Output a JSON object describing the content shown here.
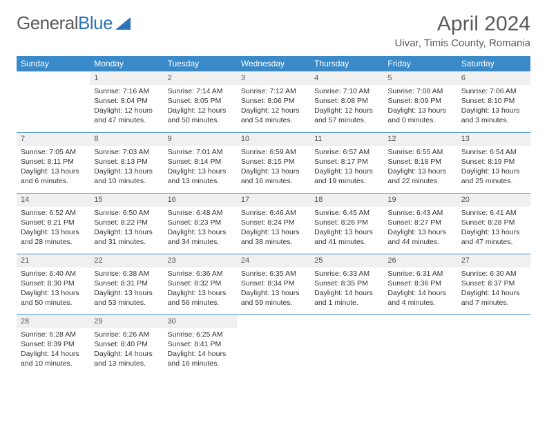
{
  "logo": {
    "text1": "General",
    "text2": "Blue"
  },
  "title": "April 2024",
  "location": "Uivar, Timis County, Romania",
  "day_headers": [
    "Sunday",
    "Monday",
    "Tuesday",
    "Wednesday",
    "Thursday",
    "Friday",
    "Saturday"
  ],
  "colors": {
    "header_bg": "#3a8ac9",
    "header_text": "#ffffff",
    "daynum_bg": "#f0f0f0",
    "row_divider": "#3a8ac9",
    "body_text": "#333333",
    "title_text": "#5a5a5a"
  },
  "weeks": [
    [
      {
        "n": "",
        "sr": "",
        "ss": "",
        "dl": ""
      },
      {
        "n": "1",
        "sr": "Sunrise: 7:16 AM",
        "ss": "Sunset: 8:04 PM",
        "dl": "Daylight: 12 hours and 47 minutes."
      },
      {
        "n": "2",
        "sr": "Sunrise: 7:14 AM",
        "ss": "Sunset: 8:05 PM",
        "dl": "Daylight: 12 hours and 50 minutes."
      },
      {
        "n": "3",
        "sr": "Sunrise: 7:12 AM",
        "ss": "Sunset: 8:06 PM",
        "dl": "Daylight: 12 hours and 54 minutes."
      },
      {
        "n": "4",
        "sr": "Sunrise: 7:10 AM",
        "ss": "Sunset: 8:08 PM",
        "dl": "Daylight: 12 hours and 57 minutes."
      },
      {
        "n": "5",
        "sr": "Sunrise: 7:08 AM",
        "ss": "Sunset: 8:09 PM",
        "dl": "Daylight: 13 hours and 0 minutes."
      },
      {
        "n": "6",
        "sr": "Sunrise: 7:06 AM",
        "ss": "Sunset: 8:10 PM",
        "dl": "Daylight: 13 hours and 3 minutes."
      }
    ],
    [
      {
        "n": "7",
        "sr": "Sunrise: 7:05 AM",
        "ss": "Sunset: 8:11 PM",
        "dl": "Daylight: 13 hours and 6 minutes."
      },
      {
        "n": "8",
        "sr": "Sunrise: 7:03 AM",
        "ss": "Sunset: 8:13 PM",
        "dl": "Daylight: 13 hours and 10 minutes."
      },
      {
        "n": "9",
        "sr": "Sunrise: 7:01 AM",
        "ss": "Sunset: 8:14 PM",
        "dl": "Daylight: 13 hours and 13 minutes."
      },
      {
        "n": "10",
        "sr": "Sunrise: 6:59 AM",
        "ss": "Sunset: 8:15 PM",
        "dl": "Daylight: 13 hours and 16 minutes."
      },
      {
        "n": "11",
        "sr": "Sunrise: 6:57 AM",
        "ss": "Sunset: 8:17 PM",
        "dl": "Daylight: 13 hours and 19 minutes."
      },
      {
        "n": "12",
        "sr": "Sunrise: 6:55 AM",
        "ss": "Sunset: 8:18 PM",
        "dl": "Daylight: 13 hours and 22 minutes."
      },
      {
        "n": "13",
        "sr": "Sunrise: 6:54 AM",
        "ss": "Sunset: 8:19 PM",
        "dl": "Daylight: 13 hours and 25 minutes."
      }
    ],
    [
      {
        "n": "14",
        "sr": "Sunrise: 6:52 AM",
        "ss": "Sunset: 8:21 PM",
        "dl": "Daylight: 13 hours and 28 minutes."
      },
      {
        "n": "15",
        "sr": "Sunrise: 6:50 AM",
        "ss": "Sunset: 8:22 PM",
        "dl": "Daylight: 13 hours and 31 minutes."
      },
      {
        "n": "16",
        "sr": "Sunrise: 6:48 AM",
        "ss": "Sunset: 8:23 PM",
        "dl": "Daylight: 13 hours and 34 minutes."
      },
      {
        "n": "17",
        "sr": "Sunrise: 6:46 AM",
        "ss": "Sunset: 8:24 PM",
        "dl": "Daylight: 13 hours and 38 minutes."
      },
      {
        "n": "18",
        "sr": "Sunrise: 6:45 AM",
        "ss": "Sunset: 8:26 PM",
        "dl": "Daylight: 13 hours and 41 minutes."
      },
      {
        "n": "19",
        "sr": "Sunrise: 6:43 AM",
        "ss": "Sunset: 8:27 PM",
        "dl": "Daylight: 13 hours and 44 minutes."
      },
      {
        "n": "20",
        "sr": "Sunrise: 6:41 AM",
        "ss": "Sunset: 8:28 PM",
        "dl": "Daylight: 13 hours and 47 minutes."
      }
    ],
    [
      {
        "n": "21",
        "sr": "Sunrise: 6:40 AM",
        "ss": "Sunset: 8:30 PM",
        "dl": "Daylight: 13 hours and 50 minutes."
      },
      {
        "n": "22",
        "sr": "Sunrise: 6:38 AM",
        "ss": "Sunset: 8:31 PM",
        "dl": "Daylight: 13 hours and 53 minutes."
      },
      {
        "n": "23",
        "sr": "Sunrise: 6:36 AM",
        "ss": "Sunset: 8:32 PM",
        "dl": "Daylight: 13 hours and 56 minutes."
      },
      {
        "n": "24",
        "sr": "Sunrise: 6:35 AM",
        "ss": "Sunset: 8:34 PM",
        "dl": "Daylight: 13 hours and 59 minutes."
      },
      {
        "n": "25",
        "sr": "Sunrise: 6:33 AM",
        "ss": "Sunset: 8:35 PM",
        "dl": "Daylight: 14 hours and 1 minute."
      },
      {
        "n": "26",
        "sr": "Sunrise: 6:31 AM",
        "ss": "Sunset: 8:36 PM",
        "dl": "Daylight: 14 hours and 4 minutes."
      },
      {
        "n": "27",
        "sr": "Sunrise: 6:30 AM",
        "ss": "Sunset: 8:37 PM",
        "dl": "Daylight: 14 hours and 7 minutes."
      }
    ],
    [
      {
        "n": "28",
        "sr": "Sunrise: 6:28 AM",
        "ss": "Sunset: 8:39 PM",
        "dl": "Daylight: 14 hours and 10 minutes."
      },
      {
        "n": "29",
        "sr": "Sunrise: 6:26 AM",
        "ss": "Sunset: 8:40 PM",
        "dl": "Daylight: 14 hours and 13 minutes."
      },
      {
        "n": "30",
        "sr": "Sunrise: 6:25 AM",
        "ss": "Sunset: 8:41 PM",
        "dl": "Daylight: 14 hours and 16 minutes."
      },
      {
        "n": "",
        "sr": "",
        "ss": "",
        "dl": ""
      },
      {
        "n": "",
        "sr": "",
        "ss": "",
        "dl": ""
      },
      {
        "n": "",
        "sr": "",
        "ss": "",
        "dl": ""
      },
      {
        "n": "",
        "sr": "",
        "ss": "",
        "dl": ""
      }
    ]
  ]
}
